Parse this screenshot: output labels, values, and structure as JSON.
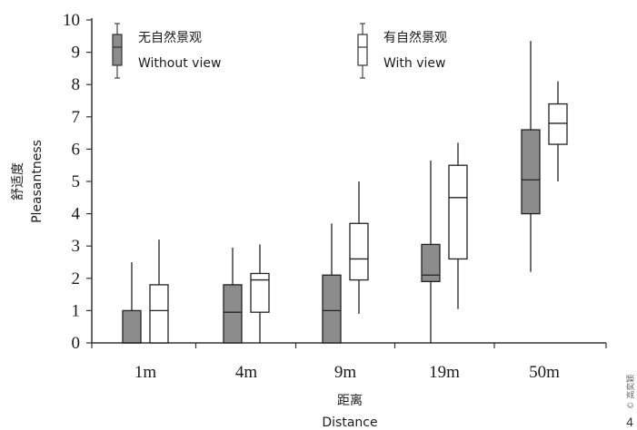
{
  "chart_data": {
    "type": "boxplot",
    "title": "",
    "xlabel_zh": "距离",
    "xlabel_en": "Distance",
    "ylabel_zh": "舒适度",
    "ylabel_en": "Pleasantness",
    "ylim": [
      0,
      10
    ],
    "y_ticks": [
      "0",
      "1",
      "2",
      "3",
      "4",
      "5",
      "6",
      "7",
      "8",
      "9",
      "10"
    ],
    "categories": [
      "1m",
      "4m",
      "9m",
      "19m",
      "50m"
    ],
    "grid": false,
    "legend_position": "top",
    "series": [
      {
        "name_zh": "无自然景观",
        "name_en": "Without view",
        "color": "#8c8c8c",
        "boxes": [
          {
            "min": 0,
            "q1": 0,
            "median": 0,
            "q3": 1.0,
            "max": 2.5
          },
          {
            "min": 0,
            "q1": 0,
            "median": 0.95,
            "q3": 1.8,
            "max": 2.95
          },
          {
            "min": 0,
            "q1": 0,
            "median": 1.0,
            "q3": 2.1,
            "max": 3.7
          },
          {
            "min": 0,
            "q1": 1.9,
            "median": 2.1,
            "q3": 3.05,
            "max": 5.65
          },
          {
            "min": 2.2,
            "q1": 4.0,
            "median": 5.05,
            "q3": 6.6,
            "max": 9.35
          }
        ]
      },
      {
        "name_zh": "有自然景观",
        "name_en": "With view",
        "color": "#ffffff",
        "boxes": [
          {
            "min": 0,
            "q1": 0,
            "median": 1.0,
            "q3": 1.8,
            "max": 3.2
          },
          {
            "min": 0,
            "q1": 0.95,
            "median": 1.95,
            "q3": 2.15,
            "max": 3.05
          },
          {
            "min": 0.9,
            "q1": 1.95,
            "median": 2.6,
            "q3": 3.7,
            "max": 5.0
          },
          {
            "min": 1.05,
            "q1": 2.6,
            "median": 4.5,
            "q3": 5.5,
            "max": 6.2
          },
          {
            "min": 5.0,
            "q1": 6.15,
            "median": 6.8,
            "q3": 7.4,
            "max": 8.1
          }
        ]
      }
    ]
  },
  "credit": "© 高奕颖",
  "page_number": "4"
}
